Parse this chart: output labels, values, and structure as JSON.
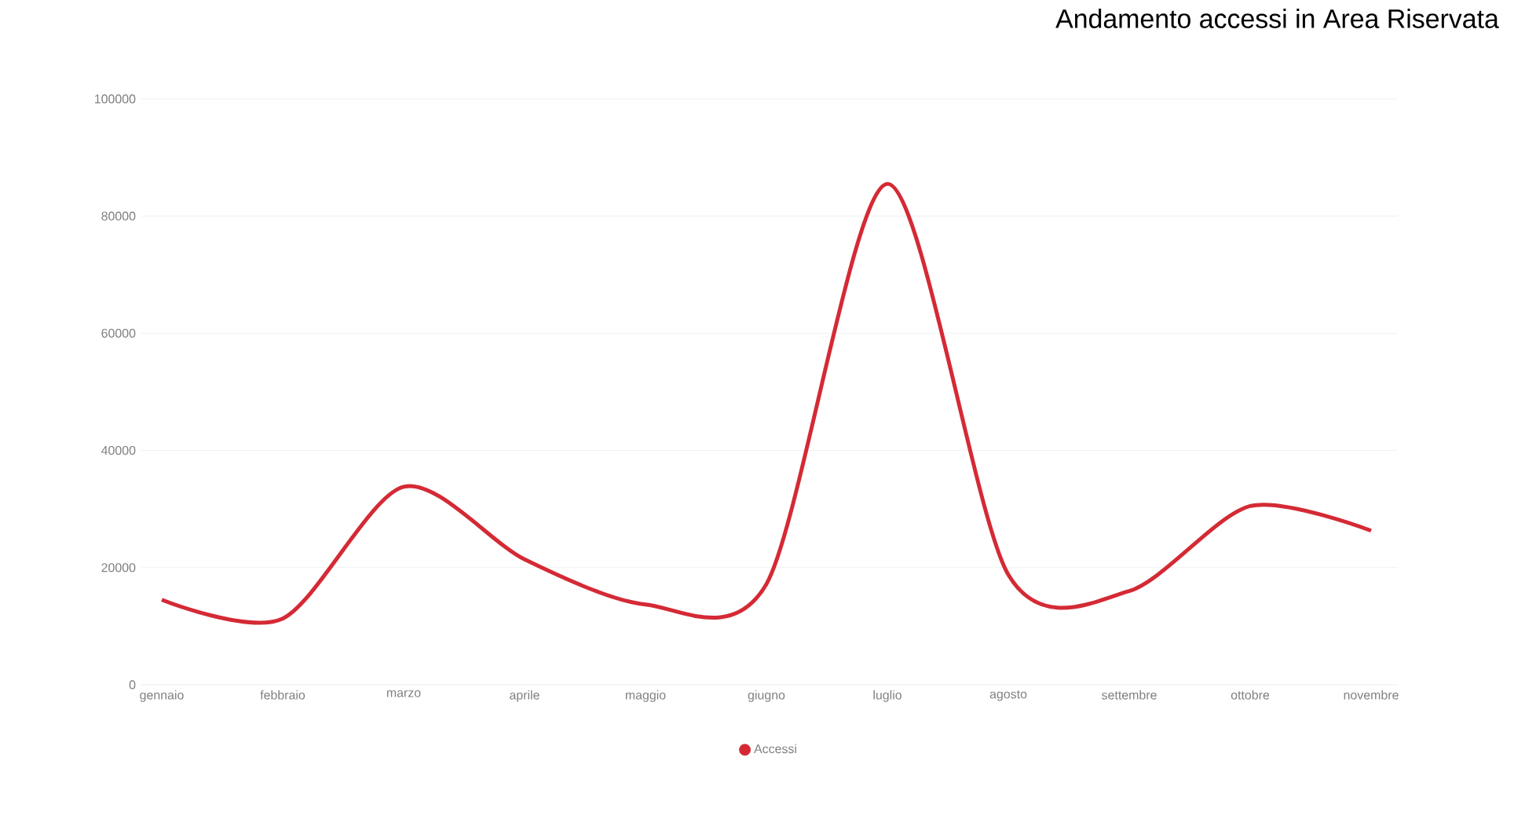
{
  "chart_data": {
    "type": "line",
    "title": "Andamento accessi in Area Riservata",
    "categories": [
      "gennaio",
      "febbraio",
      "marzo",
      "aprile",
      "maggio",
      "giugno",
      "luglio",
      "agosto",
      "settembre",
      "ottobre",
      "novembre"
    ],
    "series": [
      {
        "name": "Accessi",
        "color": "#d42a35",
        "values": [
          14500,
          11300,
          33800,
          21400,
          13700,
          17200,
          85500,
          18800,
          16000,
          30500,
          26300
        ]
      }
    ],
    "ylim": [
      0,
      100000
    ],
    "yticks": [
      0,
      20000,
      40000,
      60000,
      80000,
      100000
    ],
    "grid": "y",
    "legend": "bottom"
  }
}
